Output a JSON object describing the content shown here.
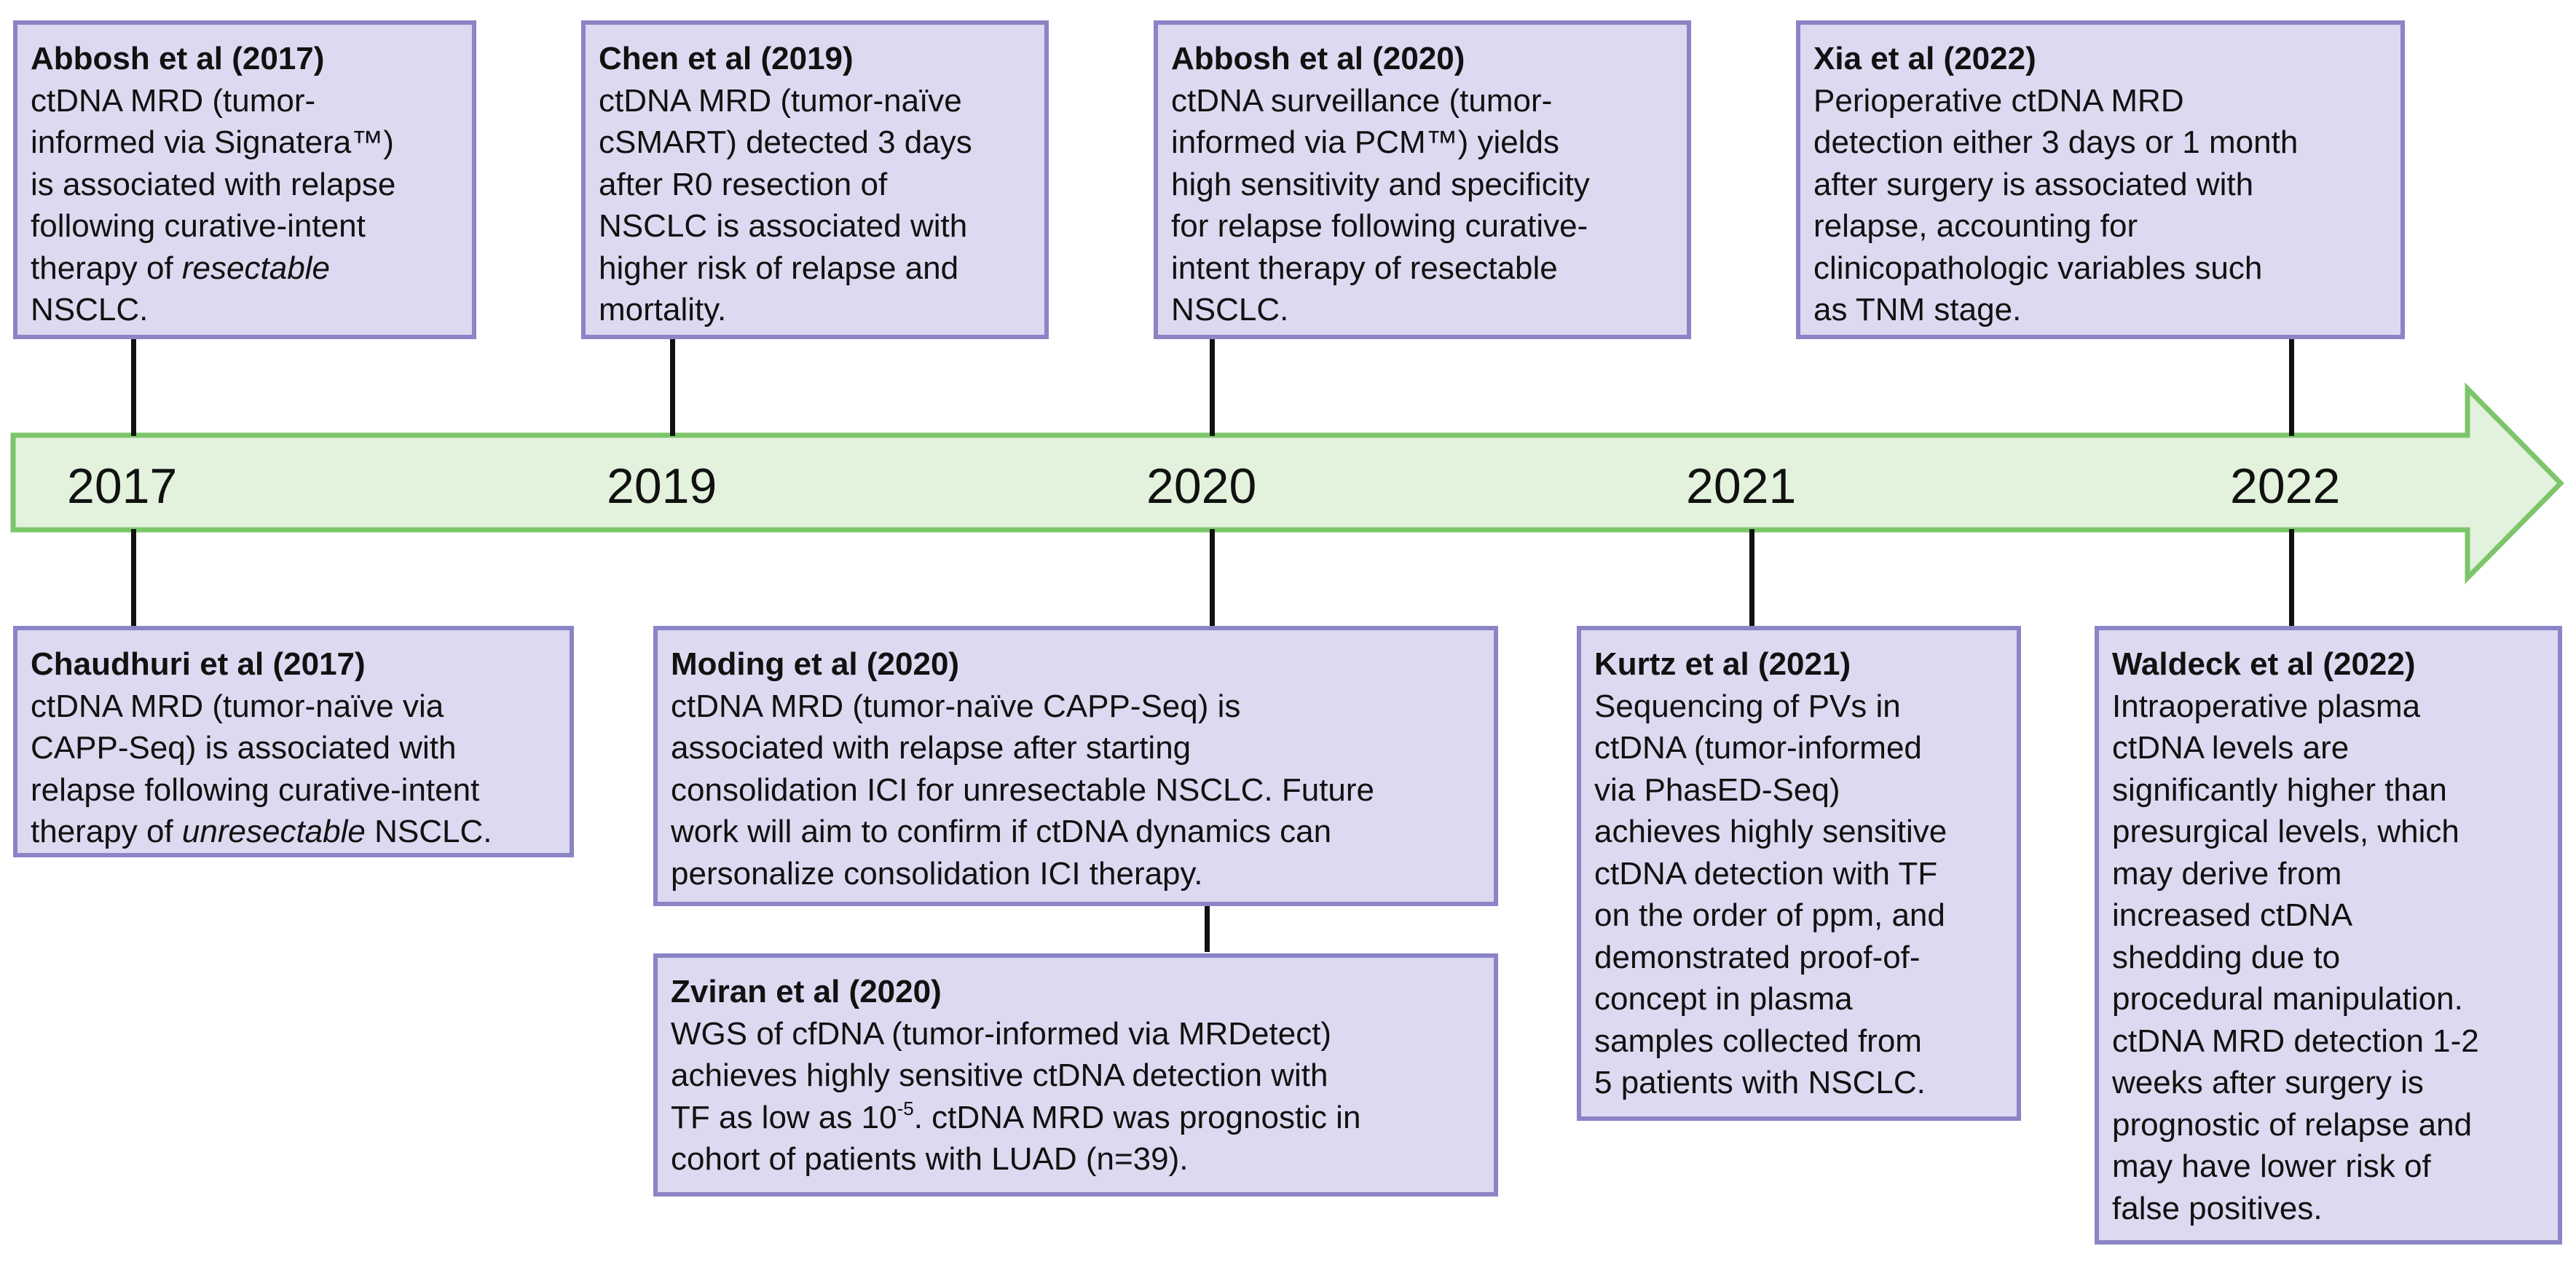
{
  "colors": {
    "card_fill": "#dcd9f0",
    "card_border": "#8b84c6",
    "arrow_fill": "#e3f2dc",
    "arrow_border": "#7cc56a",
    "connector": "#111111"
  },
  "timeline": {
    "years": [
      "2017",
      "2019",
      "2020",
      "2021",
      "2022"
    ]
  },
  "cards": {
    "abbosh2017": {
      "title": "Abbosh et al (2017)",
      "lines": [
        "ctDNA MRD (tumor-",
        "informed via Signatera™)",
        "is associated with relapse",
        "following curative-intent",
        "therapy of ",
        "NSCLC."
      ],
      "emphasis": "resectable"
    },
    "chen2019": {
      "title": "Chen et al (2019)",
      "lines": [
        "ctDNA MRD (tumor-naïve",
        "cSMART) detected 3 days",
        "after R0 resection of",
        "NSCLC is associated with",
        "higher risk of relapse and",
        "mortality."
      ]
    },
    "abbosh2020": {
      "title": "Abbosh et al (2020)",
      "lines": [
        "ctDNA surveillance (tumor-",
        "informed via PCM™) yields",
        "high sensitivity and specificity",
        "for relapse following curative-",
        "intent therapy of resectable",
        "NSCLC."
      ]
    },
    "xia2022": {
      "title": "Xia et al (2022)",
      "lines": [
        "Perioperative ctDNA MRD",
        "detection either 3 days or 1 month",
        "after surgery is associated with",
        "relapse, accounting for",
        "clinicopathologic variables such",
        "as TNM stage."
      ]
    },
    "chaudhuri2017": {
      "title": "Chaudhuri et al (2017)",
      "lines": [
        "ctDNA MRD (tumor-naïve via",
        "CAPP-Seq) is associated with",
        "relapse following curative-intent",
        "therapy of ",
        " NSCLC."
      ],
      "emphasis": "unresectable"
    },
    "moding2020": {
      "title": "Moding et al (2020)",
      "lines": [
        "ctDNA MRD (tumor-naïve CAPP-Seq) is",
        "associated with relapse after starting",
        "consolidation ICI for unresectable NSCLC. Future",
        "work will aim to confirm if ctDNA dynamics can",
        "personalize consolidation ICI therapy."
      ]
    },
    "zviran2020": {
      "title": "Zviran et al (2020)",
      "lines": [
        "WGS of cfDNA (tumor-informed via MRDetect)",
        "achieves highly sensitive ctDNA detection with",
        "TF as low as 10",
        ". ctDNA MRD was prognostic in",
        "cohort of patients with LUAD (n=39)."
      ],
      "superscript": "-5"
    },
    "kurtz2021": {
      "title": "Kurtz et al (2021)",
      "lines": [
        "Sequencing of PVs in",
        "ctDNA (tumor-informed",
        "via PhasED-Seq)",
        "achieves highly sensitive",
        "ctDNA detection with TF",
        "on the order of ppm, and",
        "demonstrated proof-of-",
        "concept in plasma",
        "samples collected from",
        "5 patients with NSCLC."
      ]
    },
    "waldeck2022": {
      "title": "Waldeck et al (2022)",
      "lines": [
        "Intraoperative plasma",
        "ctDNA levels are",
        "significantly higher than",
        "presurgical levels, which",
        "may derive from",
        "increased ctDNA",
        "shedding due to",
        "procedural manipulation.",
        "ctDNA MRD detection 1-2",
        "weeks after surgery is",
        "prognostic of relapse and",
        "may have lower risk of",
        "false positives."
      ]
    }
  }
}
